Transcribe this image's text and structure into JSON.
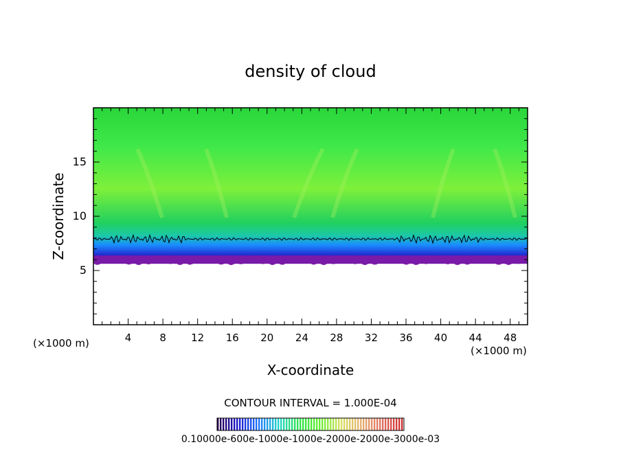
{
  "chart_data": {
    "type": "heatmap",
    "title": "density of cloud",
    "xlabel": "X-coordinate",
    "ylabel": "Z-coordinate",
    "x_unit_left": "(×1000 m)",
    "x_unit_right": "(×1000 m)",
    "xlim": [
      0,
      50
    ],
    "ylim": [
      0,
      20
    ],
    "x_ticks": [
      4,
      8,
      12,
      16,
      20,
      24,
      28,
      32,
      36,
      40,
      44,
      48
    ],
    "y_ticks": [
      5,
      10,
      15
    ],
    "cloud_base_km": 6.0,
    "contour_level_km": 7.9,
    "contour_interval_text": "CONTOUR INTERVAL = 1.000E-04",
    "colorbar_labels_text": "0.10000e-600e-1000e-1000e-2000e-2000e-3000e-03",
    "colorbar_colors": [
      "#2a0050",
      "#1b1bd0",
      "#1e78ff",
      "#21d6c8",
      "#2fe34a",
      "#66f030",
      "#d8e060",
      "#e8b070",
      "#e07060",
      "#d03030"
    ],
    "field_colors": {
      "top": "#2ad63a",
      "upper": "#40e84a",
      "mid": "#7ef03a",
      "lower": "#20d060",
      "transition": "#1cc8a8",
      "blue": "#1a8cff",
      "deep_blue": "#2222cc",
      "base": "#7a1aa8"
    }
  }
}
